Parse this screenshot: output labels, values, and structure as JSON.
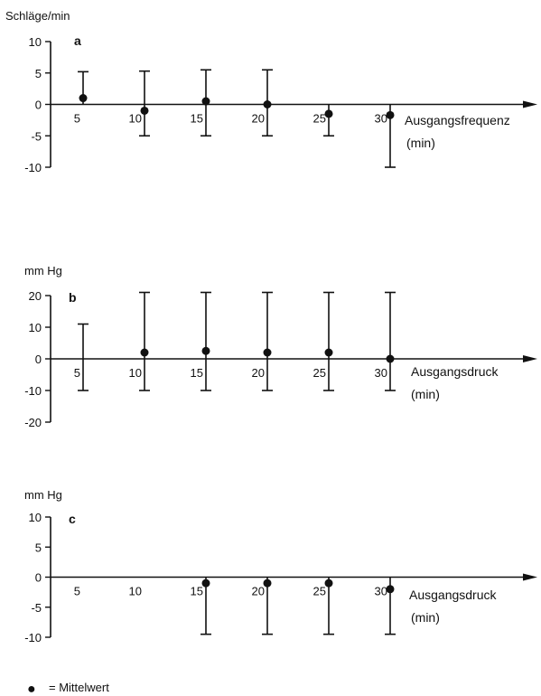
{
  "legend": {
    "marker": "●",
    "label": "= Mittelwert"
  },
  "colors": {
    "ink": "#111111",
    "background": "#ffffff"
  },
  "chart_data": [
    {
      "type": "scatter",
      "panel": "a",
      "ylabel": "Schläge/min",
      "xlabel": "Ausgangsfrequenz",
      "xunit": "(min)",
      "yticks": [
        10,
        5,
        0,
        -5,
        -10
      ],
      "ytick_labels": [
        "10",
        "5",
        "0",
        "-5",
        "-10"
      ],
      "ylim": [
        -10,
        10
      ],
      "xticks": [
        5,
        10,
        15,
        20,
        25,
        30
      ],
      "xtick_labels": [
        "5",
        "10",
        "15",
        "20",
        "25",
        "30"
      ],
      "series": [
        {
          "points": [
            {
              "x": 5,
              "mean": 1,
              "lower": 0,
              "upper": 5.2
            },
            {
              "x": 10,
              "mean": -1,
              "lower": -5,
              "upper": 5.3
            },
            {
              "x": 15,
              "mean": 0.5,
              "lower": -5,
              "upper": 5.5
            },
            {
              "x": 20,
              "mean": 0,
              "lower": -5,
              "upper": 5.5
            },
            {
              "x": 25,
              "mean": -1.5,
              "lower": -5,
              "upper": 0
            },
            {
              "x": 30,
              "mean": -1.7,
              "lower": -10,
              "upper": 0
            }
          ]
        }
      ]
    },
    {
      "type": "scatter",
      "panel": "b",
      "ylabel": "mm Hg",
      "xlabel": "Ausgangsdruck",
      "xunit": "(min)",
      "yticks": [
        20,
        10,
        0,
        -10,
        -20
      ],
      "ytick_labels": [
        "20",
        "10",
        "0",
        "-10",
        "-20"
      ],
      "ylim": [
        -20,
        20
      ],
      "xticks": [
        5,
        10,
        15,
        20,
        25,
        30
      ],
      "xtick_labels": [
        "5",
        "10",
        "15",
        "20",
        "25",
        "30"
      ],
      "series": [
        {
          "points": [
            {
              "x": 5,
              "mean": null,
              "lower": -10,
              "upper": 11
            },
            {
              "x": 10,
              "mean": 2,
              "lower": -10,
              "upper": 21
            },
            {
              "x": 15,
              "mean": 2.5,
              "lower": -10,
              "upper": 21
            },
            {
              "x": 20,
              "mean": 2,
              "lower": -10,
              "upper": 21
            },
            {
              "x": 25,
              "mean": 2,
              "lower": -10,
              "upper": 21
            },
            {
              "x": 30,
              "mean": 0,
              "lower": -10,
              "upper": 21
            }
          ]
        }
      ]
    },
    {
      "type": "scatter",
      "panel": "c",
      "ylabel": "mm Hg",
      "xlabel": "Ausgangsdruck",
      "xunit": "(min)",
      "yticks": [
        10,
        5,
        0,
        -5,
        -10
      ],
      "ytick_labels": [
        "10",
        "5",
        "0",
        "-5",
        "-10"
      ],
      "ylim": [
        -10,
        10
      ],
      "xticks": [
        5,
        10,
        15,
        20,
        25,
        30
      ],
      "xtick_labels": [
        "5",
        "10",
        "15",
        "20",
        "25",
        "30"
      ],
      "series": [
        {
          "points": [
            {
              "x": 15,
              "mean": -1,
              "lower": -9.5,
              "upper": 0
            },
            {
              "x": 20,
              "mean": -1,
              "lower": -9.5,
              "upper": 0
            },
            {
              "x": 25,
              "mean": -1,
              "lower": -9.5,
              "upper": 0
            },
            {
              "x": 30,
              "mean": -2,
              "lower": -9.5,
              "upper": 0
            }
          ]
        }
      ]
    }
  ]
}
